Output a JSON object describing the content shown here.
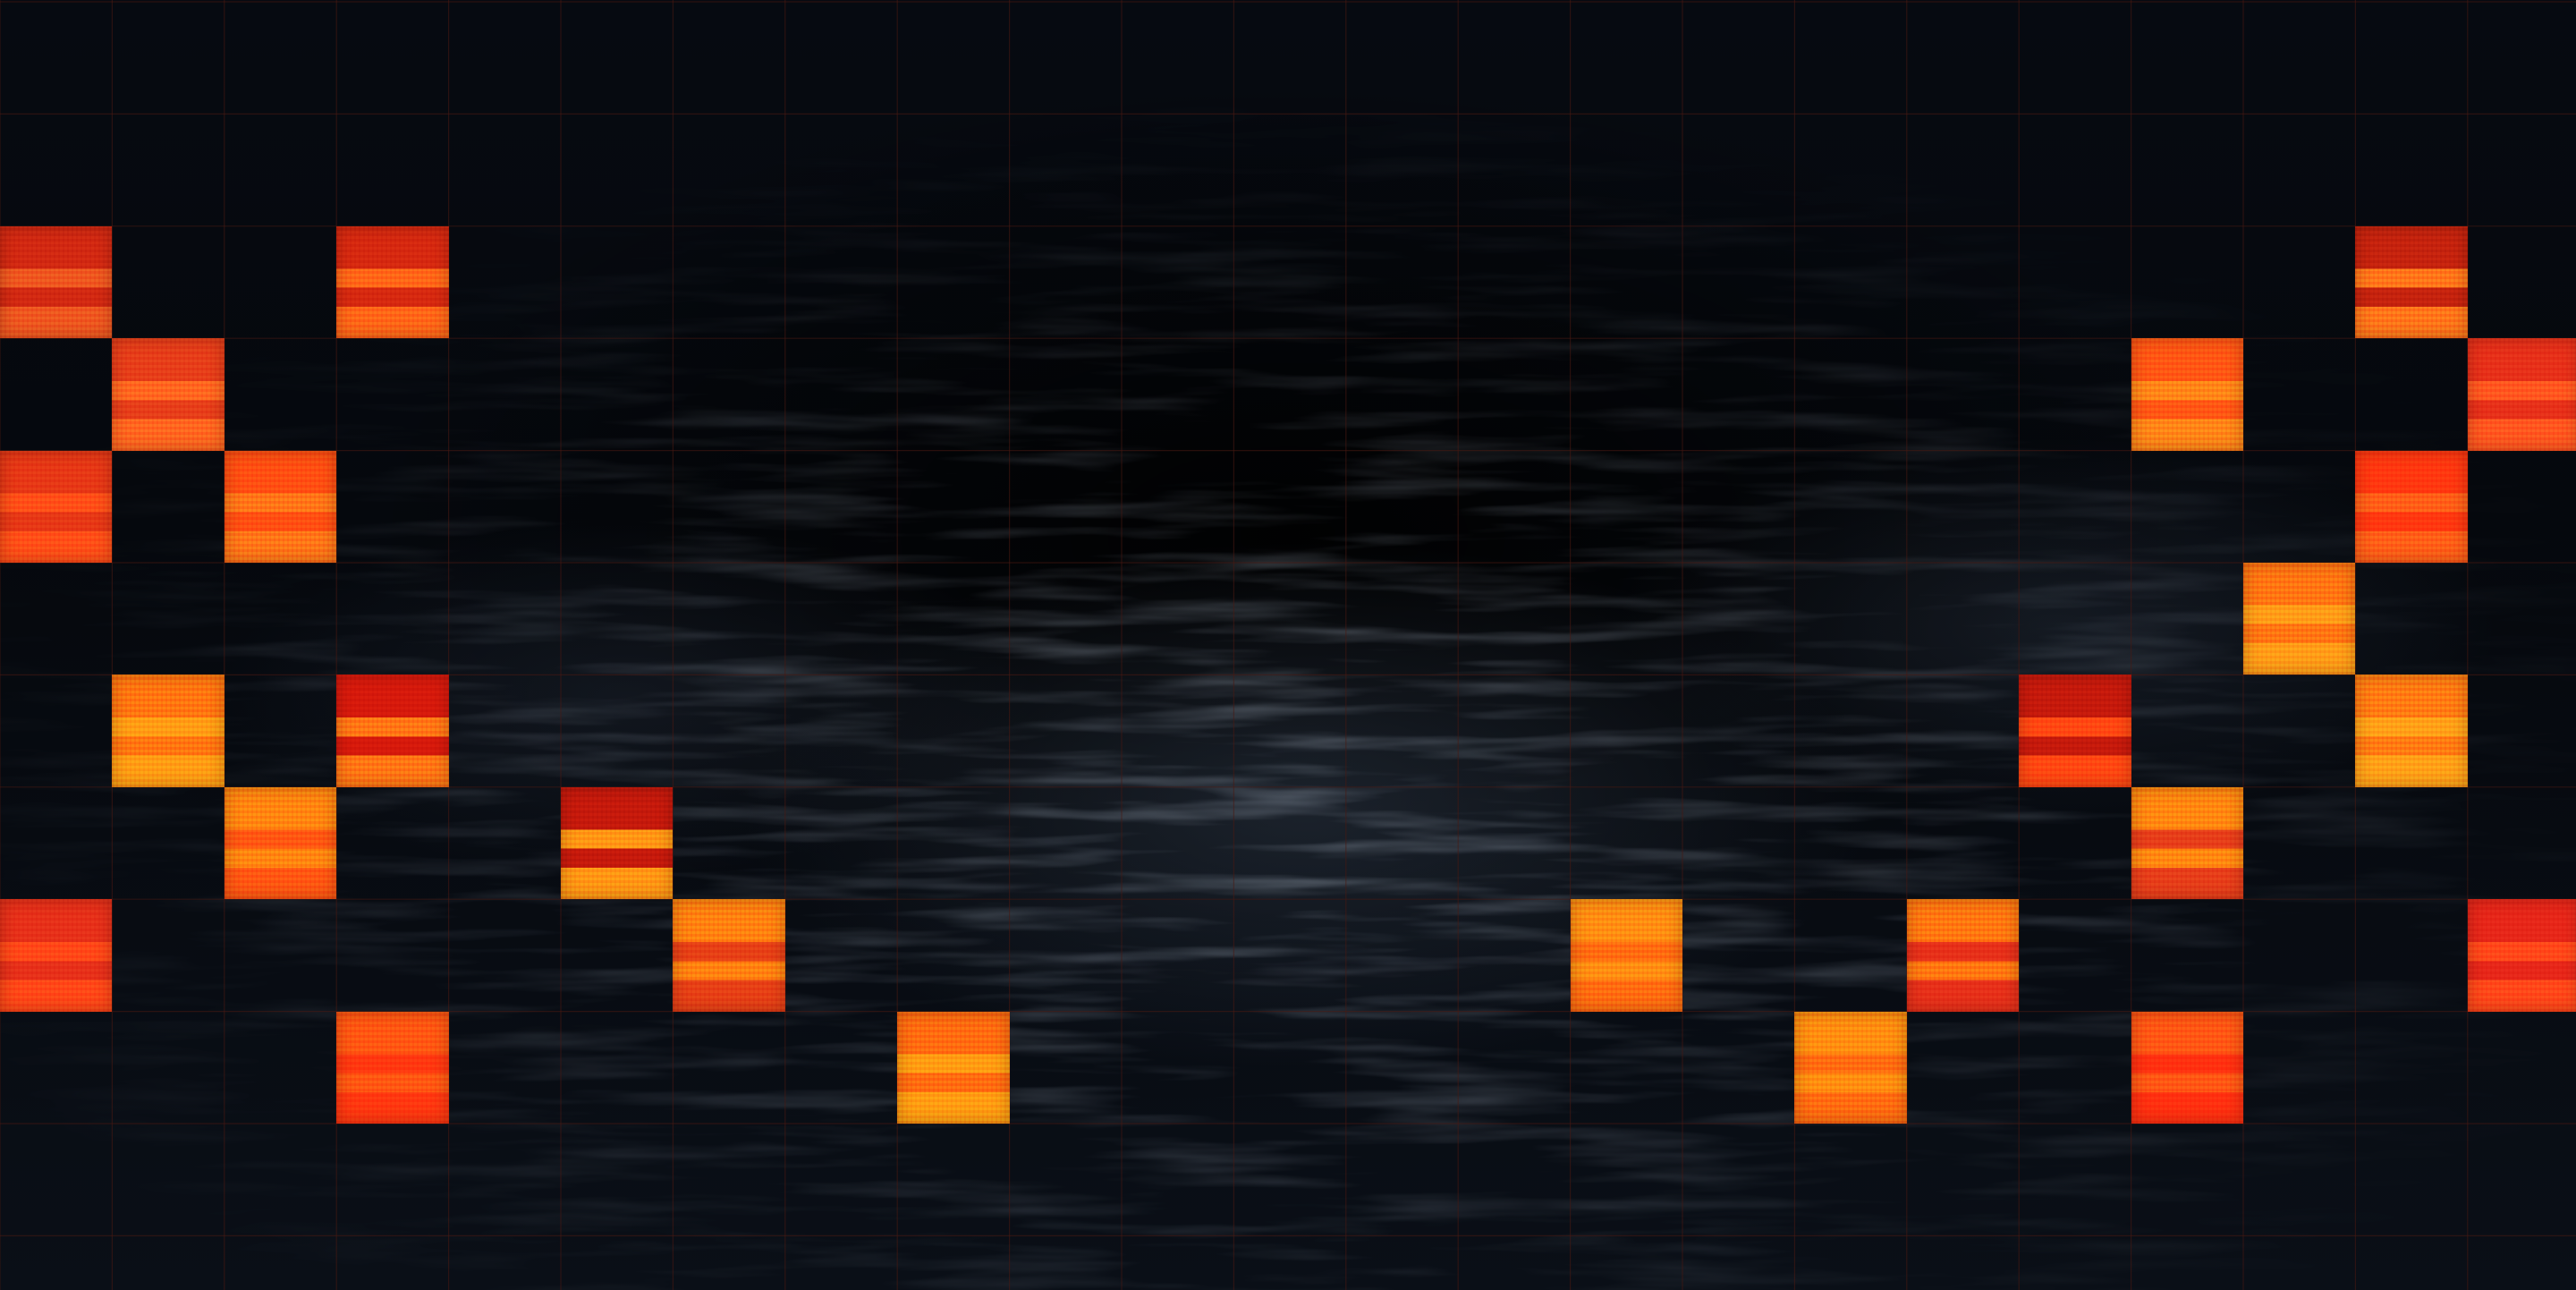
{
  "grid": {
    "columns": 23,
    "rows": 11,
    "line_color": "#4a1a12"
  },
  "palette": {
    "background": "#070b12",
    "haze": "#8aa0c0",
    "tile_colors": [
      "#e8321a",
      "#ff5a1a",
      "#ff7a12",
      "#ff9210",
      "#c81810"
    ]
  },
  "tiles": [
    {
      "col": 0,
      "row": 2,
      "color": "#d42a12",
      "band": "#f05a20"
    },
    {
      "col": 3,
      "row": 2,
      "color": "#d82a10",
      "band": "#ff6a18"
    },
    {
      "col": 21,
      "row": 2,
      "color": "#c8240e",
      "band": "#ff7a1a"
    },
    {
      "col": 1,
      "row": 3,
      "color": "#e8401a",
      "band": "#ff6a20"
    },
    {
      "col": 19,
      "row": 3,
      "color": "#ff5a14",
      "band": "#ff8a18"
    },
    {
      "col": 22,
      "row": 3,
      "color": "#e8321a",
      "band": "#ff5a20"
    },
    {
      "col": 0,
      "row": 4,
      "color": "#e83a16",
      "band": "#ff5218"
    },
    {
      "col": 2,
      "row": 4,
      "color": "#ff5212",
      "band": "#ff7a18"
    },
    {
      "col": 21,
      "row": 4,
      "color": "#ff3a10",
      "band": "#ff6218"
    },
    {
      "col": 20,
      "row": 5,
      "color": "#ff7a12",
      "band": "#ffa018"
    },
    {
      "col": 1,
      "row": 6,
      "color": "#ff7a10",
      "band": "#ffa014"
    },
    {
      "col": 3,
      "row": 6,
      "color": "#d81a0c",
      "band": "#ff7a14"
    },
    {
      "col": 18,
      "row": 6,
      "color": "#c81a0c",
      "band": "#ff4a12"
    },
    {
      "col": 21,
      "row": 6,
      "color": "#ff8012",
      "band": "#ffa418"
    },
    {
      "col": 2,
      "row": 7,
      "color": "#ff8a10",
      "band": "#ff5a12"
    },
    {
      "col": 5,
      "row": 7,
      "color": "#c81a0c",
      "band": "#ff9a14"
    },
    {
      "col": 19,
      "row": 7,
      "color": "#ff8c10",
      "band": "#e8401a"
    },
    {
      "col": 0,
      "row": 8,
      "color": "#e8321a",
      "band": "#ff4a18"
    },
    {
      "col": 6,
      "row": 8,
      "color": "#ff8610",
      "band": "#e84216"
    },
    {
      "col": 14,
      "row": 8,
      "color": "#ff9212",
      "band": "#ff7010"
    },
    {
      "col": 17,
      "row": 8,
      "color": "#ff7c10",
      "band": "#e8321a"
    },
    {
      "col": 22,
      "row": 8,
      "color": "#e8281a",
      "band": "#ff4a1a"
    },
    {
      "col": 3,
      "row": 9,
      "color": "#ff5a12",
      "band": "#ff3a10"
    },
    {
      "col": 8,
      "row": 9,
      "color": "#ff7010",
      "band": "#ffa012"
    },
    {
      "col": 16,
      "row": 9,
      "color": "#ff9210",
      "band": "#ff7010"
    },
    {
      "col": 19,
      "row": 9,
      "color": "#ff5a14",
      "band": "#ff3210"
    }
  ]
}
